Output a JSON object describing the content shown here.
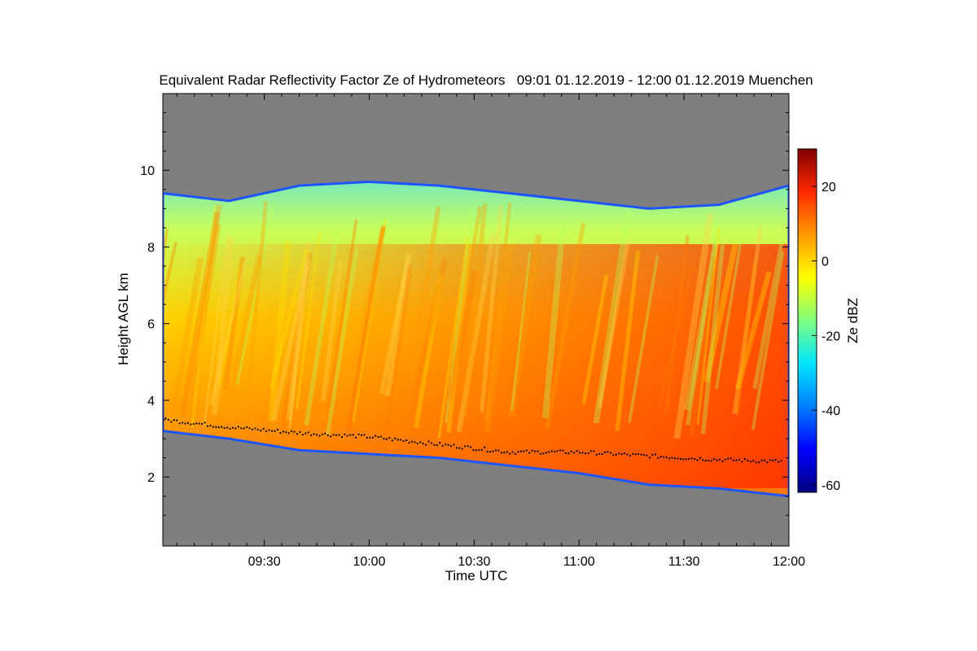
{
  "chart_data": {
    "type": "heatmap",
    "title": "Equivalent Radar Reflectivity Factor Ze of Hydrometeors   09:01 01.12.2019 - 12:00 01.12.2019 Muenchen",
    "xlabel": "Time UTC",
    "ylabel": "Height AGL km",
    "x_tick_labels": [
      "09:30",
      "10:00",
      "10:30",
      "11:00",
      "11:30",
      "12:00"
    ],
    "x_tick_values_min": [
      30,
      60,
      90,
      120,
      150,
      180
    ],
    "x_range_min": [
      1,
      180
    ],
    "y_tick_labels": [
      "2",
      "4",
      "6",
      "8",
      "10"
    ],
    "y_tick_values": [
      2,
      4,
      6,
      8,
      10
    ],
    "y_range_km": [
      0.2,
      12.0
    ],
    "colorbar": {
      "label": "Ze dBZ",
      "range": [
        -62,
        30
      ],
      "tick_labels": [
        "-60",
        "-40",
        "-20",
        "0",
        "20"
      ],
      "tick_values": [
        -60,
        -40,
        -20,
        0,
        20
      ],
      "colormap": [
        "#00007f",
        "#0000ff",
        "#007fff",
        "#00e5ff",
        "#7fff7f",
        "#ffff00",
        "#ff9900",
        "#ff2a00",
        "#7f0000"
      ]
    },
    "background_color": "#7f7f7f",
    "echo": {
      "description_minutes": [
        1,
        20,
        40,
        60,
        80,
        100,
        120,
        140,
        160,
        180
      ],
      "cloud_top_km": [
        9.4,
        9.2,
        9.6,
        9.7,
        9.6,
        9.4,
        9.2,
        9.0,
        9.1,
        9.6
      ],
      "cloud_base_km": [
        3.2,
        3.0,
        2.7,
        2.6,
        2.5,
        2.3,
        2.1,
        1.8,
        1.7,
        1.5
      ],
      "melting_layer_km": [
        3.5,
        3.3,
        3.15,
        3.05,
        2.85,
        2.65,
        2.65,
        2.55,
        2.45,
        2.4
      ]
    }
  }
}
